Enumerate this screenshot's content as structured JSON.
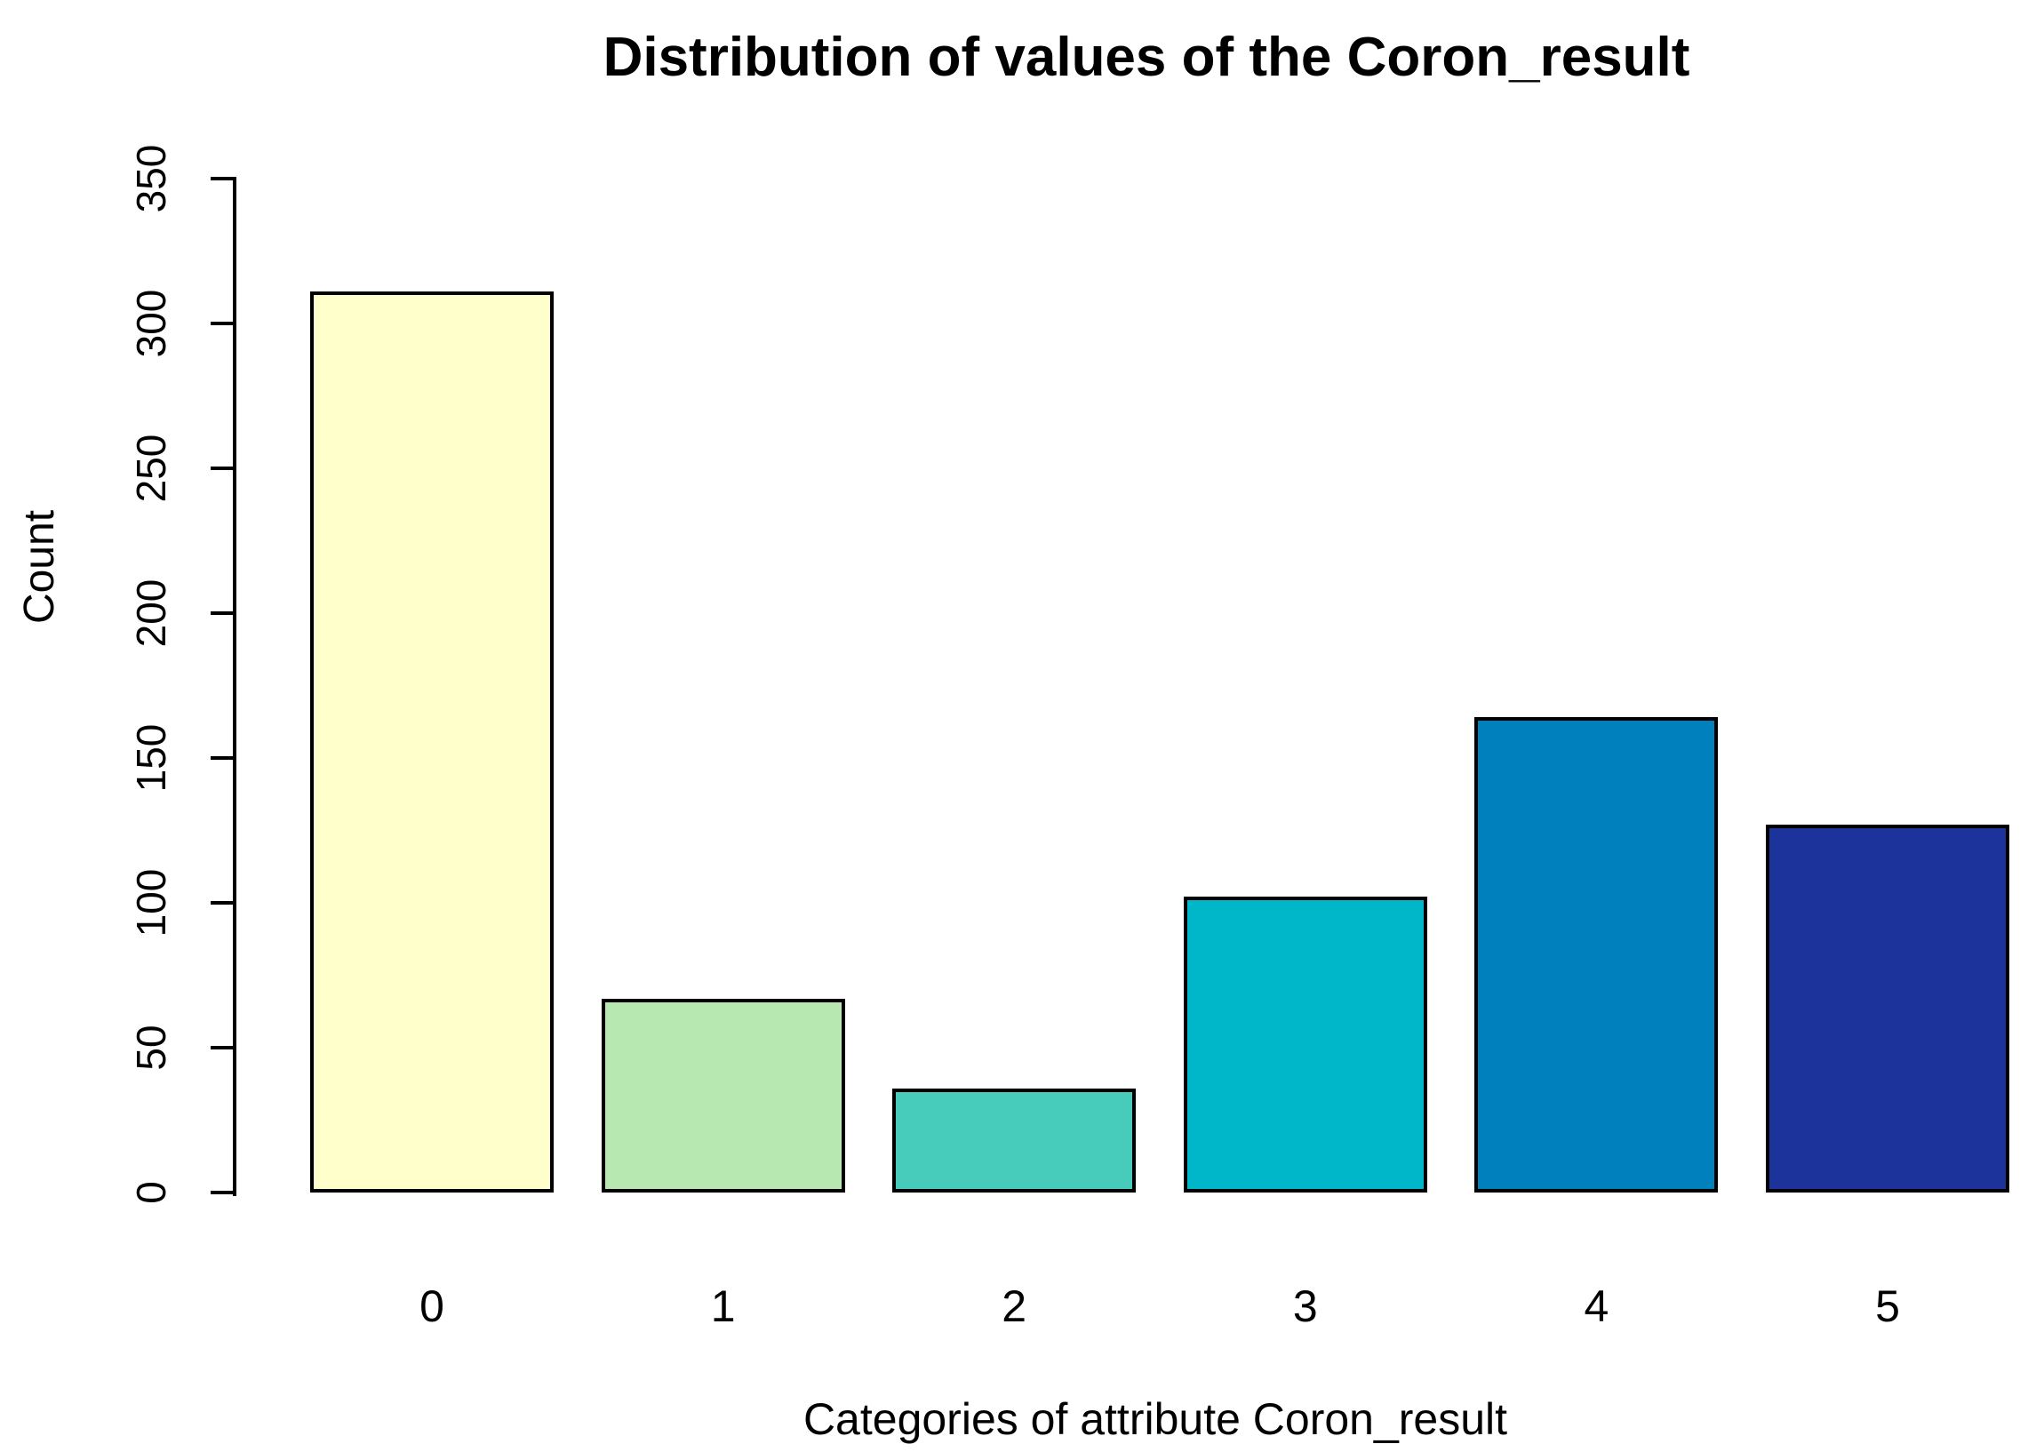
{
  "figure": {
    "title": "Distribution of values of the Coron_result",
    "xlabel": "Categories of attribute Coron_result",
    "ylabel": "Count",
    "background_color": "#FFFFFF",
    "text_color": "#000000"
  },
  "chart_data": {
    "type": "bar",
    "title": "Distribution of values of the Coron_result",
    "xlabel": "Categories of attribute Coron_result",
    "ylabel": "Count",
    "categories": [
      "0",
      "1",
      "2",
      "3",
      "4",
      "5"
    ],
    "values": [
      311,
      67,
      36,
      102,
      164,
      127
    ],
    "series": [
      {
        "name": "Count",
        "values": [
          311,
          67,
          36,
          102,
          164,
          127
        ]
      }
    ],
    "bar_colors": [
      "#FFFFCC",
      "#B7E8B1",
      "#47CBBA",
      "#00B6C9",
      "#0080BD",
      "#1B339B"
    ],
    "bar_border_color": "#000000",
    "yticks": [
      0,
      50,
      100,
      150,
      200,
      250,
      300,
      350
    ],
    "ylim": [
      0,
      350
    ],
    "grid": false,
    "legend_position": "none",
    "axis_color": "#000000"
  }
}
